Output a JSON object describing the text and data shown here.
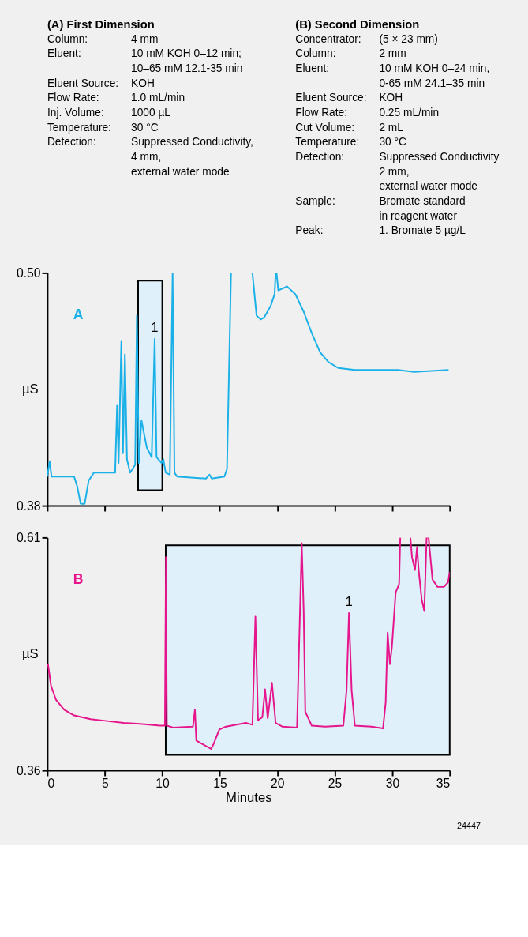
{
  "chart_data": [
    {
      "type": "other",
      "title": "(A) First Dimension",
      "annotations": [
        "Column: 4 mm",
        "Eluent: 10 mM KOH 0–12 min;",
        "10–65 mM 12.1-35 min",
        "Eluent Source: KOH",
        "Flow Rate: 1.0 mL/min",
        "Inj. Volume: 1000 µL",
        "Temperature: 30 °C",
        "Detection: Suppressed Conductivity,",
        "4 mm,",
        "external water mode"
      ]
    },
    {
      "type": "other",
      "title": "(B) Second Dimension",
      "annotations": [
        "Concentrator: (5 × 23 mm)",
        "Column: 2 mm",
        "Eluent: 10 mM KOH 0–24 min,",
        "0-65 mM 24.1–35 min",
        "Eluent Source: KOH",
        "Flow Rate: 0.25 mL/min",
        "Cut Volume: 2 mL",
        "Temperature: 30 °C",
        "Detection: Suppressed Conductivity",
        "2 mm,",
        "external water mode",
        "Sample: Bromate standard",
        "in reagent water",
        "Peak: 1. Bromate 5 µg/L"
      ]
    },
    {
      "type": "line",
      "ylabel": "µS",
      "xlim": [
        0,
        35
      ],
      "xticks": [
        0,
        5,
        10,
        15,
        20,
        25,
        30,
        35
      ],
      "ylim": [
        0.38,
        0.5
      ],
      "yticks": [
        {
          "value": 0.38,
          "label": "0.38"
        },
        {
          "value": 0.5,
          "label": "0.50"
        }
      ],
      "tick_labels": "y",
      "x": [
        0,
        0.2,
        0.37,
        2.33,
        2.6,
        2.9,
        3.25,
        3.6,
        4.05,
        5.9,
        6.07,
        6.2,
        6.44,
        6.58,
        6.75,
        6.93,
        7.2,
        7.64,
        7.79,
        7.96,
        8.19,
        8.65,
        9.08,
        9.34,
        9.5,
        9.94,
        10.09,
        10.3,
        10.66,
        10.9,
        11.06,
        11.29,
        13.8,
        14.1,
        14.3,
        15.4,
        15.63,
        15.98,
        16.9,
        17.84,
        18.2,
        18.56,
        18.85,
        19.43,
        19.77,
        19.86,
        19.94,
        20.09,
        20.86,
        21.58,
        22.3,
        23.0,
        23.74,
        24.46,
        25.3,
        26.75,
        28.2,
        30.5,
        31.9,
        34.9
      ],
      "series": [
        {
          "color": "#1ab0e8",
          "values": [
            0.395,
            0.403,
            0.395,
            0.395,
            0.39,
            0.381,
            0.381,
            0.393,
            0.397,
            0.397,
            0.432,
            0.402,
            0.465,
            0.407,
            0.458,
            0.404,
            0.397,
            0.401,
            0.478,
            0.402,
            0.424,
            0.41,
            0.405,
            0.466,
            0.405,
            0.402,
            0.404,
            0.397,
            0.396,
            0.5,
            0.397,
            0.395,
            0.394,
            0.396,
            0.394,
            0.395,
            0.399,
            0.5,
            null,
            0.5,
            0.478,
            0.476,
            0.477,
            0.483,
            0.489,
            0.5,
            0.5,
            0.491,
            0.493,
            0.489,
            0.48,
            0.469,
            0.459,
            0.454,
            0.451,
            0.45,
            0.45,
            0.45,
            0.449,
            0.45
          ]
        }
      ],
      "bands": [
        {
          "axis": "x",
          "from": 7.9,
          "to": 10.0,
          "color": "#dff0fa"
        }
      ],
      "annotations": [
        "A",
        {
          "text": "1",
          "x": 9.34,
          "y": 0.466
        }
      ]
    },
    {
      "type": "line",
      "ylabel": "µS",
      "xlabel": "Minutes",
      "xlim": [
        0,
        35
      ],
      "xticks": [
        0,
        5,
        10,
        15,
        20,
        25,
        30,
        35
      ],
      "ylim": [
        0.36,
        0.61
      ],
      "yticks": [
        {
          "value": 0.36,
          "label": "0.36"
        },
        {
          "value": 0.61,
          "label": "0.61"
        }
      ],
      "x": [
        0.06,
        0.32,
        0.75,
        1.47,
        2.33,
        3.76,
        5.2,
        6.64,
        8.07,
        9.8,
        10.23,
        10.32,
        10.4,
        10.95,
        12.67,
        12.84,
        12.96,
        13.53,
        14.25,
        14.45,
        14.97,
        15.55,
        17.27,
        17.84,
        18.1,
        18.33,
        18.7,
        18.94,
        19.17,
        19.54,
        19.86,
        20.43,
        21.72,
        21.98,
        22.13,
        22.3,
        22.44,
        23.0,
        24.17,
        25.75,
        26.03,
        26.24,
        26.47,
        26.75,
        28.19,
        29.2,
        29.43,
        29.6,
        29.8,
        29.97,
        30.3,
        30.6,
        30.7,
        31.1,
        31.58,
        31.72,
        31.98,
        32.16,
        32.3,
        32.56,
        32.79,
        32.99,
        33.16,
        33.5,
        33.94,
        34.5,
        34.86,
        35
      ],
      "series": [
        {
          "color": "#e6158c",
          "values": [
            0.474,
            0.451,
            0.436,
            0.425,
            0.419,
            0.415,
            0.413,
            0.411,
            0.41,
            0.408,
            0.408,
            0.589,
            0.408,
            0.406,
            0.407,
            0.425,
            0.392,
            0.388,
            0.383,
            0.388,
            0.404,
            0.407,
            0.411,
            0.409,
            0.525,
            0.414,
            0.417,
            0.447,
            0.416,
            0.454,
            0.411,
            0.407,
            0.406,
            0.531,
            0.604,
            0.531,
            0.423,
            0.408,
            0.407,
            0.408,
            0.446,
            0.529,
            0.446,
            0.408,
            0.407,
            0.405,
            0.433,
            0.508,
            0.474,
            0.492,
            0.551,
            0.56,
            0.61,
            null,
            0.61,
            0.589,
            0.575,
            0.6,
            0.575,
            0.544,
            0.531,
            0.61,
            0.61,
            0.565,
            0.557,
            0.557,
            0.562,
            0.573
          ]
        }
      ],
      "bands": [
        {
          "axis": "x",
          "from": 10.3,
          "to": 35,
          "color": "#dff0fa"
        }
      ],
      "annotations": [
        "B",
        {
          "text": "1",
          "x": 26.24,
          "y": 0.529
        },
        "24447"
      ]
    }
  ]
}
